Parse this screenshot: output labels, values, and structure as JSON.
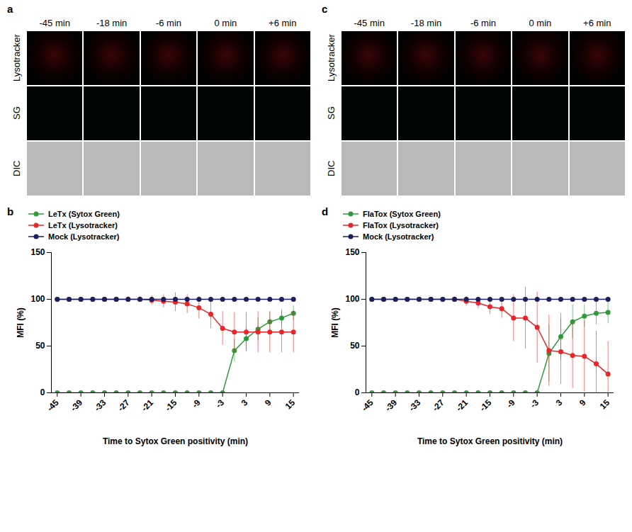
{
  "image_panels": [
    {
      "panel_label": "a",
      "columns": [
        "-45 min",
        "-18 min",
        "-6 min",
        "0 min",
        "+6 min"
      ],
      "rows": [
        "Lysotracker",
        "SG",
        "DIC"
      ]
    },
    {
      "panel_label": "c",
      "columns": [
        "-45 min",
        "-18 min",
        "-6 min",
        "0 min",
        "+6 min"
      ],
      "rows": [
        "Lysotracker",
        "SG",
        "DIC"
      ]
    }
  ],
  "chart_data": [
    {
      "type": "line",
      "panel_label": "b",
      "x_label": "Time to Sytox Green positivity (min)",
      "y_label": "MFI (%)",
      "x": [
        -45,
        -42,
        -39,
        -36,
        -33,
        -30,
        -27,
        -24,
        -21,
        -18,
        -15,
        -12,
        -9,
        -6,
        -3,
        0,
        3,
        6,
        9,
        12,
        15
      ],
      "xlim": [
        -46.5,
        16.5
      ],
      "xticks": [
        -45,
        -39,
        -33,
        -27,
        -21,
        -15,
        -9,
        -3,
        3,
        9,
        15
      ],
      "ylim": [
        0,
        150
      ],
      "yticks": [
        0,
        50,
        100,
        150
      ],
      "grid": false,
      "legend": "top-left",
      "series": [
        {
          "name": "LeTx (Sytox Green)",
          "color": "#2e9a3a",
          "marker": "circle",
          "line_style": "solid",
          "values": [
            0,
            0,
            0,
            0,
            0,
            0,
            0,
            0,
            0,
            0,
            0,
            0,
            0,
            0,
            0,
            45,
            58,
            68,
            76,
            80,
            85
          ],
          "error": [
            null,
            null,
            null,
            null,
            null,
            null,
            null,
            null,
            null,
            null,
            null,
            null,
            null,
            null,
            null,
            12,
            12,
            12,
            10,
            9,
            8
          ]
        },
        {
          "name": "LeTx (Lysotracker)",
          "color": "#e8262a",
          "marker": "circle",
          "line_style": "solid",
          "values": [
            100,
            100,
            100,
            100,
            100,
            100,
            100,
            100,
            99,
            98,
            97,
            95,
            91,
            84,
            69,
            65,
            65,
            65,
            65,
            65,
            65
          ],
          "error": [
            0,
            2,
            2,
            2,
            2,
            2,
            3,
            3,
            5,
            7,
            10,
            10,
            12,
            15,
            18,
            21,
            21,
            22,
            22,
            22,
            22
          ]
        },
        {
          "name": "Mock (Lysotracker)",
          "color": "#1c1f5e",
          "marker": "circle",
          "line_style": "solid",
          "values": [
            100,
            100,
            100,
            100,
            100,
            100,
            100,
            100,
            100,
            100,
            100,
            100,
            100,
            100,
            100,
            100,
            100,
            100,
            100,
            100,
            100
          ]
        }
      ]
    },
    {
      "type": "line",
      "panel_label": "d",
      "x_label": "Time to Sytox Green positivity (min)",
      "y_label": "MFI (%)",
      "x": [
        -45,
        -42,
        -39,
        -36,
        -33,
        -30,
        -27,
        -24,
        -21,
        -18,
        -15,
        -12,
        -9,
        -6,
        -3,
        0,
        3,
        6,
        9,
        12,
        15
      ],
      "xlim": [
        -46.5,
        16.5
      ],
      "xticks": [
        -45,
        -39,
        -33,
        -27,
        -21,
        -15,
        -9,
        -3,
        3,
        9,
        15
      ],
      "ylim": [
        0,
        150
      ],
      "yticks": [
        0,
        50,
        100,
        150
      ],
      "grid": false,
      "legend": "top-left",
      "series": [
        {
          "name": "FlaTox (Sytox Green)",
          "color": "#2e9a3a",
          "marker": "circle",
          "line_style": "solid",
          "values": [
            0,
            0,
            0,
            0,
            0,
            0,
            0,
            0,
            0,
            0,
            0,
            0,
            0,
            0,
            0,
            42,
            60,
            76,
            82,
            85,
            86
          ],
          "error": [
            null,
            null,
            null,
            null,
            null,
            null,
            null,
            null,
            null,
            null,
            null,
            null,
            null,
            null,
            null,
            30,
            25,
            18,
            12,
            12,
            12
          ]
        },
        {
          "name": "FlaTox (Lysotracker)",
          "color": "#e8262a",
          "marker": "circle",
          "line_style": "solid",
          "values": [
            100,
            100,
            100,
            100,
            100,
            100,
            100,
            100,
            98,
            96,
            92,
            90,
            80,
            80,
            70,
            45,
            44,
            40,
            39,
            31,
            20
          ],
          "error": [
            0,
            0,
            1,
            1,
            1,
            2,
            2,
            3,
            5,
            6,
            8,
            10,
            25,
            33,
            38,
            38,
            35,
            35,
            38,
            35,
            35
          ]
        },
        {
          "name": "Mock (Lysotracker)",
          "color": "#1c1f5e",
          "marker": "circle",
          "line_style": "solid",
          "values": [
            100,
            100,
            100,
            100,
            100,
            100,
            100,
            100,
            100,
            100,
            100,
            100,
            100,
            100,
            100,
            100,
            100,
            100,
            100,
            100,
            100
          ]
        }
      ]
    }
  ]
}
